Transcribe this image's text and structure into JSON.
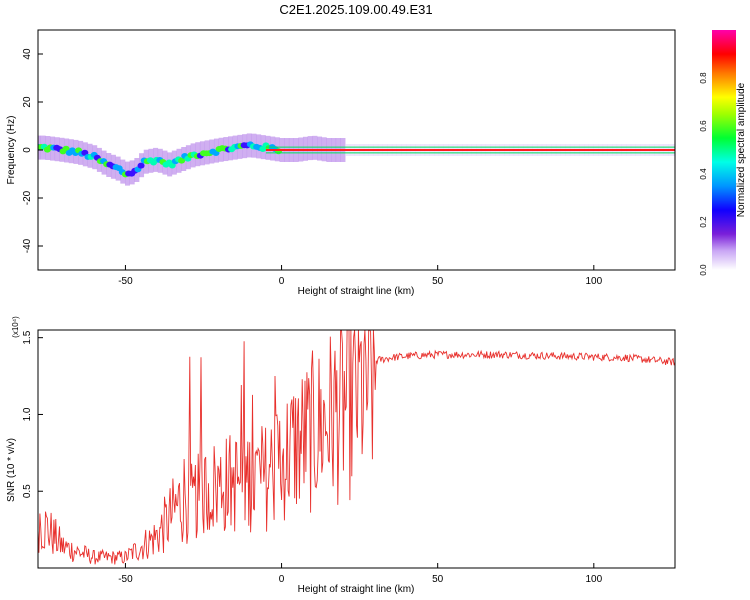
{
  "title": "C2E1.2025.109.00.49.E31",
  "chart_data": [
    {
      "type": "heatmap",
      "xlabel": "Height of straight line (km)",
      "ylabel": "Frequency (Hz)",
      "xlim": [
        -78,
        126
      ],
      "ylim": [
        -50,
        50
      ],
      "x_ticks": [
        -50,
        0,
        50,
        100
      ],
      "y_ticks": [
        -40,
        -20,
        0,
        20,
        40
      ],
      "colorbar": {
        "label": "Normalized spectral amplitude",
        "range": [
          0,
          1
        ],
        "ticks": [
          "0.0",
          "0.2",
          "0.4",
          "0.6",
          "0.8"
        ],
        "colors": [
          "#ffffff",
          "#c9a6f5",
          "#7a1fd9",
          "#1000ff",
          "#0096ff",
          "#00ffe6",
          "#00ff32",
          "#a0ff00",
          "#ffff00",
          "#ff7800",
          "#ff0000",
          "#ff00aa"
        ]
      },
      "ridge": {
        "x": [
          -76,
          -70,
          -65,
          -60,
          -56,
          -52,
          -50,
          -47,
          -44,
          -40,
          -36,
          -32,
          -28,
          -24,
          -20,
          -15,
          -10,
          -5,
          0,
          5,
          10,
          15,
          20,
          30,
          60,
          90,
          126
        ],
        "y": [
          1,
          0,
          -1,
          -3,
          -6,
          -8,
          -10,
          -9,
          -5,
          -4,
          -6,
          -4,
          -2,
          -1,
          0,
          1,
          2,
          1,
          0,
          0,
          1,
          0,
          0,
          0,
          0,
          0,
          0
        ]
      }
    },
    {
      "type": "line",
      "xlabel": "Height of straight line (km)",
      "ylabel": "SNR (10 * v/v)",
      "y_multiplier": "(x10⁴)",
      "xlim": [
        -78,
        126
      ],
      "ylim": [
        0,
        1.55
      ],
      "x_ticks": [
        -50,
        0,
        50,
        100
      ],
      "y_ticks": [
        "0.5",
        "1.0",
        "1.5"
      ],
      "color": "#e8302c",
      "envelope": {
        "x": [
          -78,
          -70,
          -60,
          -50,
          -45,
          -40,
          -35,
          -30,
          -25,
          -20,
          -15,
          -10,
          -5,
          0,
          5,
          10,
          15,
          20,
          25,
          30,
          35,
          40,
          50,
          70,
          90,
          110,
          126
        ],
        "y": [
          0.28,
          0.12,
          0.06,
          0.06,
          0.12,
          0.18,
          0.3,
          0.45,
          0.55,
          0.6,
          0.62,
          0.65,
          0.66,
          0.8,
          0.9,
          0.98,
          1.08,
          1.18,
          1.28,
          1.35,
          1.37,
          1.38,
          1.39,
          1.39,
          1.38,
          1.37,
          1.34
        ]
      }
    }
  ]
}
